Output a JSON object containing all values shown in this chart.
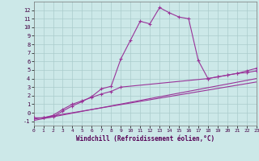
{
  "background_color": "#cce8e8",
  "grid_color": "#aacccc",
  "line_color": "#993399",
  "xlabel": "Windchill (Refroidissement éolien,°C)",
  "xlim": [
    0,
    23
  ],
  "ylim": [
    -1.5,
    13
  ],
  "yticks": [
    -1,
    0,
    1,
    2,
    3,
    4,
    5,
    6,
    7,
    8,
    9,
    10,
    11,
    12
  ],
  "xticks": [
    0,
    1,
    2,
    3,
    4,
    5,
    6,
    7,
    8,
    9,
    10,
    11,
    12,
    13,
    14,
    15,
    16,
    17,
    18,
    19,
    20,
    21,
    22,
    23
  ],
  "curve1_x": [
    0,
    1,
    2,
    3,
    4,
    5,
    6,
    7,
    8,
    9,
    10,
    11,
    12,
    13,
    14,
    15,
    16,
    17,
    18,
    19,
    20,
    21,
    22,
    23
  ],
  "curve1_y": [
    -0.6,
    -0.6,
    -0.5,
    0.2,
    0.8,
    1.3,
    1.9,
    2.8,
    3.1,
    6.3,
    8.5,
    10.7,
    10.4,
    12.3,
    11.7,
    11.2,
    11.0,
    6.1,
    4.0,
    4.2,
    4.4,
    4.6,
    4.9,
    5.2
  ],
  "curve2_x": [
    0,
    1,
    2,
    3,
    4,
    5,
    6,
    7,
    8,
    9,
    18,
    19,
    20,
    21,
    22,
    23
  ],
  "curve2_y": [
    -0.6,
    -0.6,
    -0.3,
    0.4,
    1.0,
    1.4,
    1.8,
    2.2,
    2.5,
    3.0,
    4.0,
    4.2,
    4.4,
    4.6,
    4.7,
    4.9
  ],
  "line3_x": [
    0,
    23
  ],
  "line3_y": [
    -0.9,
    4.0
  ],
  "line4_x": [
    0,
    23
  ],
  "line4_y": [
    -0.75,
    3.6
  ]
}
